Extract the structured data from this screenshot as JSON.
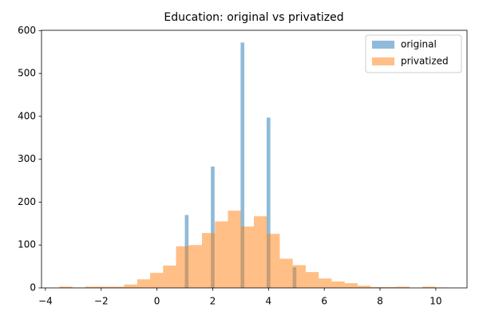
{
  "chart_data": {
    "type": "histogram",
    "title": "Education: original vs privatized",
    "xlim": [
      -4.14,
      11.12
    ],
    "ylim": [
      0,
      600.6
    ],
    "xticks": [
      {
        "value": -4,
        "label": "−4"
      },
      {
        "value": -2,
        "label": "−2"
      },
      0,
      2,
      4,
      6,
      8,
      10
    ],
    "yticks": [
      0,
      100,
      200,
      300,
      400,
      500,
      600
    ],
    "legend": "upper right",
    "grid": false,
    "series": [
      {
        "name": "original",
        "color": "#1f77b4",
        "opacity": 0.5,
        "bins": [
          1,
          1.133,
          1.267,
          1.4,
          1.533,
          1.667,
          1.8,
          1.933,
          2.067,
          2.2,
          2.333,
          2.467,
          2.6,
          2.733,
          2.867,
          3,
          3.133,
          3.267,
          3.4,
          3.533,
          3.667,
          3.8,
          3.933,
          4.067,
          4.2,
          4.333,
          4.467,
          4.6,
          4.733,
          4.867,
          5
        ],
        "values": [
          170,
          0,
          0,
          0,
          0,
          0,
          0,
          283,
          0,
          0,
          0,
          0,
          0,
          0,
          0,
          572,
          0,
          0,
          0,
          0,
          0,
          0,
          397,
          0,
          0,
          0,
          0,
          0,
          0,
          48
        ]
      },
      {
        "name": "privatized",
        "color": "#ff7f0e",
        "opacity": 0.5,
        "bins": [
          -3.5,
          -3.035,
          -2.57,
          -2.105,
          -1.64,
          -1.175,
          -0.71,
          -0.245,
          0.22,
          0.685,
          1.15,
          1.615,
          2.08,
          2.545,
          3.01,
          3.475,
          3.94,
          4.405,
          4.87,
          5.335,
          5.8,
          6.265,
          6.73,
          7.195,
          7.66,
          8.125,
          8.59,
          9.055,
          9.52,
          9.985,
          10.45
        ],
        "values": [
          3,
          1,
          3,
          3,
          3,
          8,
          20,
          35,
          52,
          97,
          100,
          128,
          155,
          180,
          143,
          167,
          126,
          68,
          53,
          37,
          22,
          15,
          11,
          5,
          2,
          2,
          3,
          0,
          3,
          1
        ]
      }
    ]
  }
}
